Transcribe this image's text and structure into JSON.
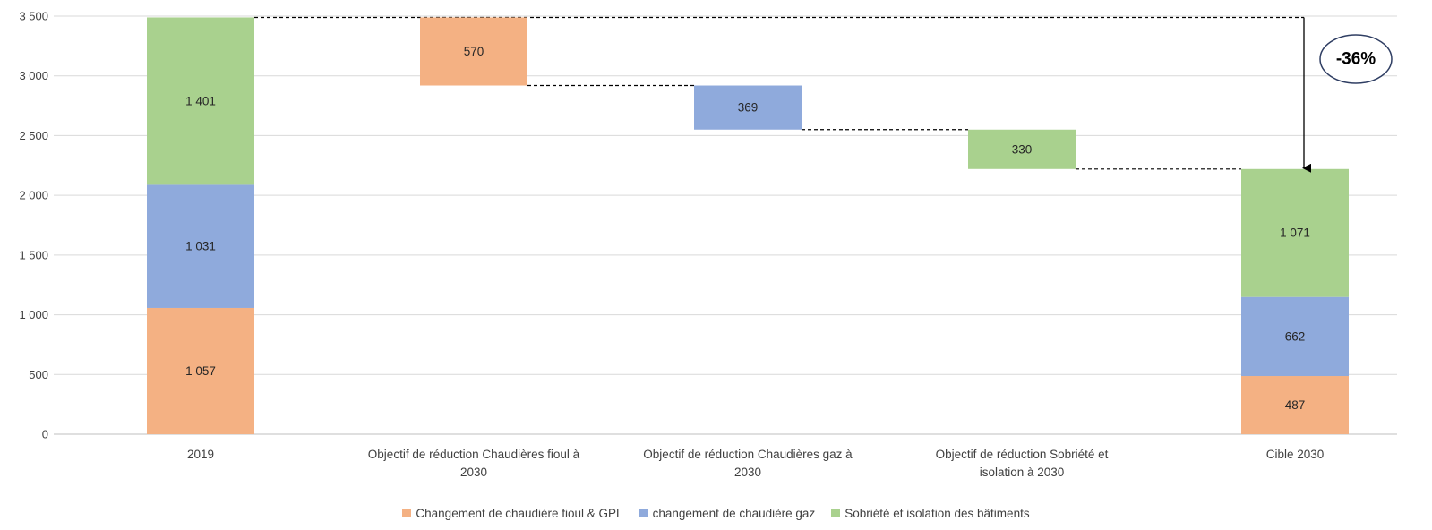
{
  "chart_data": {
    "type": "bar",
    "variant": "waterfall-stacked",
    "title": "",
    "xlabel": "",
    "ylabel": "",
    "ylim": [
      0,
      3500
    ],
    "yticks": [
      0,
      500,
      1000,
      1500,
      2000,
      2500,
      3000,
      3500
    ],
    "ytick_labels": [
      "0",
      "500",
      "1 000",
      "1 500",
      "2 000",
      "2 500",
      "3 000",
      "3 500"
    ],
    "grid": true,
    "legend_position": "bottom",
    "categories": [
      [
        "2019"
      ],
      [
        "Objectif de réduction Chaudières fioul à",
        "2030"
      ],
      [
        "Objectif de réduction Chaudières gaz à",
        "2030"
      ],
      [
        "Objectif de réduction Sobriété et",
        "isolation à 2030"
      ],
      [
        "Cible 2030"
      ]
    ],
    "series": [
      {
        "name": "Changement de chaudière fioul & GPL",
        "color": "#F4B183"
      },
      {
        "name": "changement de chaudière gaz",
        "color": "#8FAADC"
      },
      {
        "name": "Sobriété et isolation des bâtiments",
        "color": "#A9D18E"
      }
    ],
    "stacks": [
      {
        "category": 0,
        "segments": [
          {
            "series": 0,
            "value": 1057,
            "label": "1 057"
          },
          {
            "series": 1,
            "value": 1031,
            "label": "1 031"
          },
          {
            "series": 2,
            "value": 1401,
            "label": "1 401"
          }
        ]
      },
      {
        "category": 4,
        "segments": [
          {
            "series": 0,
            "value": 487,
            "label": "487"
          },
          {
            "series": 1,
            "value": 662,
            "label": "662"
          },
          {
            "series": 2,
            "value": 1071,
            "label": "1 071"
          }
        ]
      }
    ],
    "reductions": [
      {
        "category": 1,
        "series": 0,
        "from": 3489,
        "to": 2919,
        "label": "570"
      },
      {
        "category": 2,
        "series": 1,
        "from": 2919,
        "to": 2550,
        "label": "369"
      },
      {
        "category": 3,
        "series": 2,
        "from": 2550,
        "to": 2220,
        "label": "330"
      }
    ],
    "annotation": {
      "text": "-36%",
      "arrow_from": 3489,
      "arrow_to": 2220
    }
  }
}
